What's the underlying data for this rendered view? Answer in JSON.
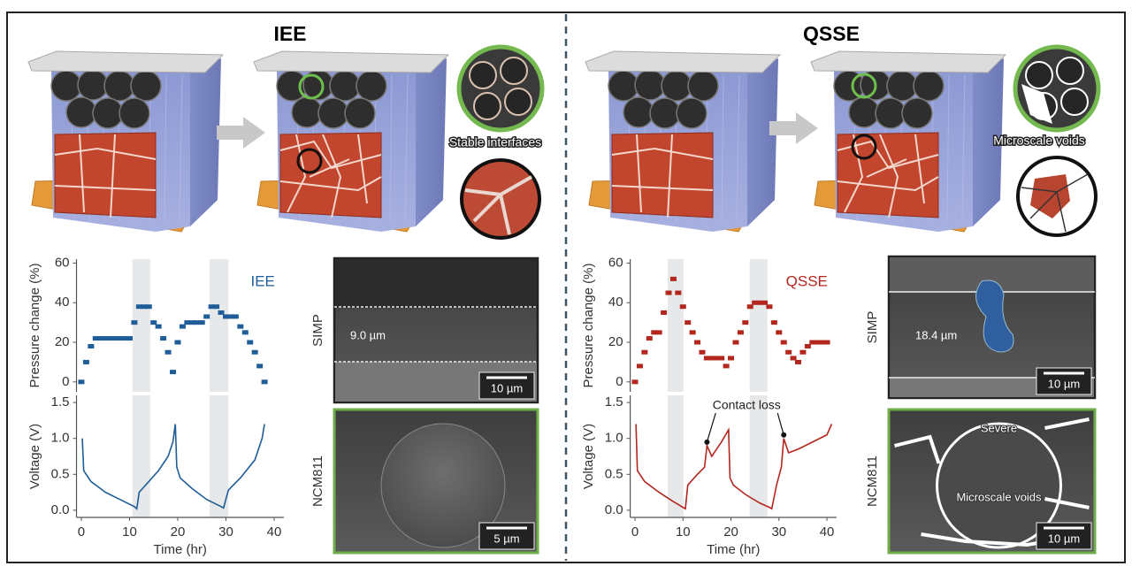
{
  "panels": [
    {
      "title": "IEE",
      "schematic_label": "Stable interfaces",
      "charts": [
        {
          "type": "dash",
          "ylabel": "Pressure change (%)",
          "label": "IEE",
          "color": "#1e5d98",
          "x": [
            0,
            1,
            2,
            3,
            4,
            5,
            6,
            7,
            8,
            9,
            10,
            11,
            12,
            13,
            14,
            15,
            16,
            17,
            18,
            19,
            20,
            21,
            22,
            23,
            24,
            25,
            26,
            27,
            28,
            29,
            30,
            31,
            32,
            33,
            34,
            35,
            36,
            37,
            38
          ],
          "values": [
            0,
            10,
            18,
            22,
            22,
            22,
            22,
            22,
            22,
            22,
            22,
            30,
            38,
            38,
            38,
            30,
            28,
            22,
            15,
            5,
            20,
            28,
            30,
            30,
            30,
            30,
            33,
            38,
            38,
            35,
            33,
            33,
            33,
            28,
            25,
            20,
            15,
            8,
            0
          ],
          "xlim": [
            -1,
            42
          ],
          "ylim": [
            -5,
            62
          ],
          "yticks": [
            0,
            20,
            40,
            60
          ],
          "shaded": [
            [
              10.6,
              14.3
            ],
            [
              26.6,
              30.5
            ]
          ]
        },
        {
          "type": "line",
          "ylabel": "Voltage (V)",
          "xlabel": "Time (hr)",
          "color": "#1e5d98",
          "x": [
            0.2,
            0.5,
            2,
            5,
            8,
            11,
            11.5,
            12,
            14,
            16,
            18,
            19,
            19.5,
            19.8,
            20.5,
            23,
            26,
            29,
            29.5,
            30.5,
            33,
            36,
            37.5,
            38
          ],
          "values": [
            1.0,
            0.55,
            0.4,
            0.25,
            0.15,
            0.05,
            0.02,
            0.25,
            0.4,
            0.55,
            0.75,
            0.95,
            1.2,
            0.6,
            0.45,
            0.3,
            0.15,
            0.05,
            0.03,
            0.28,
            0.45,
            0.7,
            1.0,
            1.2
          ],
          "xlim": [
            -1,
            42
          ],
          "ylim": [
            -0.1,
            1.6
          ],
          "yticks": [
            {
              "value": 0,
              "label": "0.0"
            },
            0.5,
            {
              "value": 1,
              "label": "1.0"
            },
            1.5
          ],
          "xticks": [
            0,
            10,
            20,
            30,
            40
          ],
          "shaded": [
            [
              10.6,
              14.3
            ],
            [
              26.6,
              30.5
            ]
          ]
        }
      ],
      "images": [
        {
          "label": "SIMP",
          "annotation": "9.0 µm",
          "scale_bar": "10 µm"
        },
        {
          "label": "NCM811",
          "scale_bar": "5 µm"
        }
      ]
    },
    {
      "title": "QSSE",
      "schematic_label": "Microscale voids",
      "charts": [
        {
          "type": "dash",
          "ylabel": "Pressure change (%)",
          "label": "QSSE",
          "color": "#b3261e",
          "x": [
            0,
            1,
            2,
            3,
            4,
            5,
            6,
            7,
            8,
            9,
            10,
            11,
            12,
            13,
            14,
            15,
            16,
            17,
            18,
            19,
            20,
            21,
            22,
            23,
            24,
            25,
            26,
            27,
            28,
            29,
            30,
            31,
            32,
            33,
            34,
            35,
            36,
            37,
            38,
            39,
            40
          ],
          "values": [
            0,
            8,
            15,
            22,
            25,
            25,
            35,
            45,
            52,
            45,
            38,
            30,
            25,
            20,
            15,
            12,
            12,
            12,
            12,
            8,
            12,
            20,
            25,
            30,
            38,
            40,
            40,
            40,
            38,
            30,
            25,
            20,
            15,
            12,
            10,
            15,
            18,
            20,
            20,
            20,
            20
          ],
          "xlim": [
            -1,
            42
          ],
          "ylim": [
            -5,
            62
          ],
          "yticks": [
            0,
            20,
            40,
            60
          ],
          "shaded": [
            [
              6.8,
              10.1
            ],
            [
              23.9,
              27.6
            ]
          ]
        },
        {
          "type": "line",
          "ylabel": "Voltage (V)",
          "xlabel": "Time (hr)",
          "color": "#b3261e",
          "annotation": "Contact loss",
          "x": [
            0.2,
            0.5,
            2,
            5,
            8,
            10,
            10.5,
            11,
            13,
            14.5,
            15,
            16,
            18,
            19.5,
            19.8,
            20.5,
            23,
            26,
            28,
            28.5,
            29.5,
            30.5,
            31,
            32,
            34,
            37,
            40,
            41
          ],
          "values": [
            1.2,
            0.55,
            0.4,
            0.25,
            0.12,
            0.04,
            0.02,
            0.35,
            0.5,
            0.6,
            0.9,
            0.75,
            0.95,
            1.12,
            0.45,
            0.35,
            0.22,
            0.1,
            0.04,
            0.02,
            0.35,
            0.6,
            1.0,
            0.8,
            0.85,
            0.95,
            1.05,
            1.2
          ],
          "xlim": [
            -1,
            42
          ],
          "ylim": [
            -0.1,
            1.6
          ],
          "yticks": [
            {
              "value": 0,
              "label": "0.0"
            },
            0.5,
            {
              "value": 1,
              "label": "1.0"
            },
            1.5
          ],
          "xticks": [
            0,
            10,
            20,
            30,
            40
          ],
          "shaded": [
            [
              6.8,
              10.1
            ],
            [
              23.9,
              27.6
            ]
          ]
        }
      ],
      "images": [
        {
          "label": "SIMP",
          "annotation": "18.4 µm",
          "scale_bar": "10 µm"
        },
        {
          "label": "NCM811",
          "annotations": [
            "Severe",
            "Microscale voids"
          ],
          "scale_bar": "10 µm"
        }
      ]
    }
  ]
}
